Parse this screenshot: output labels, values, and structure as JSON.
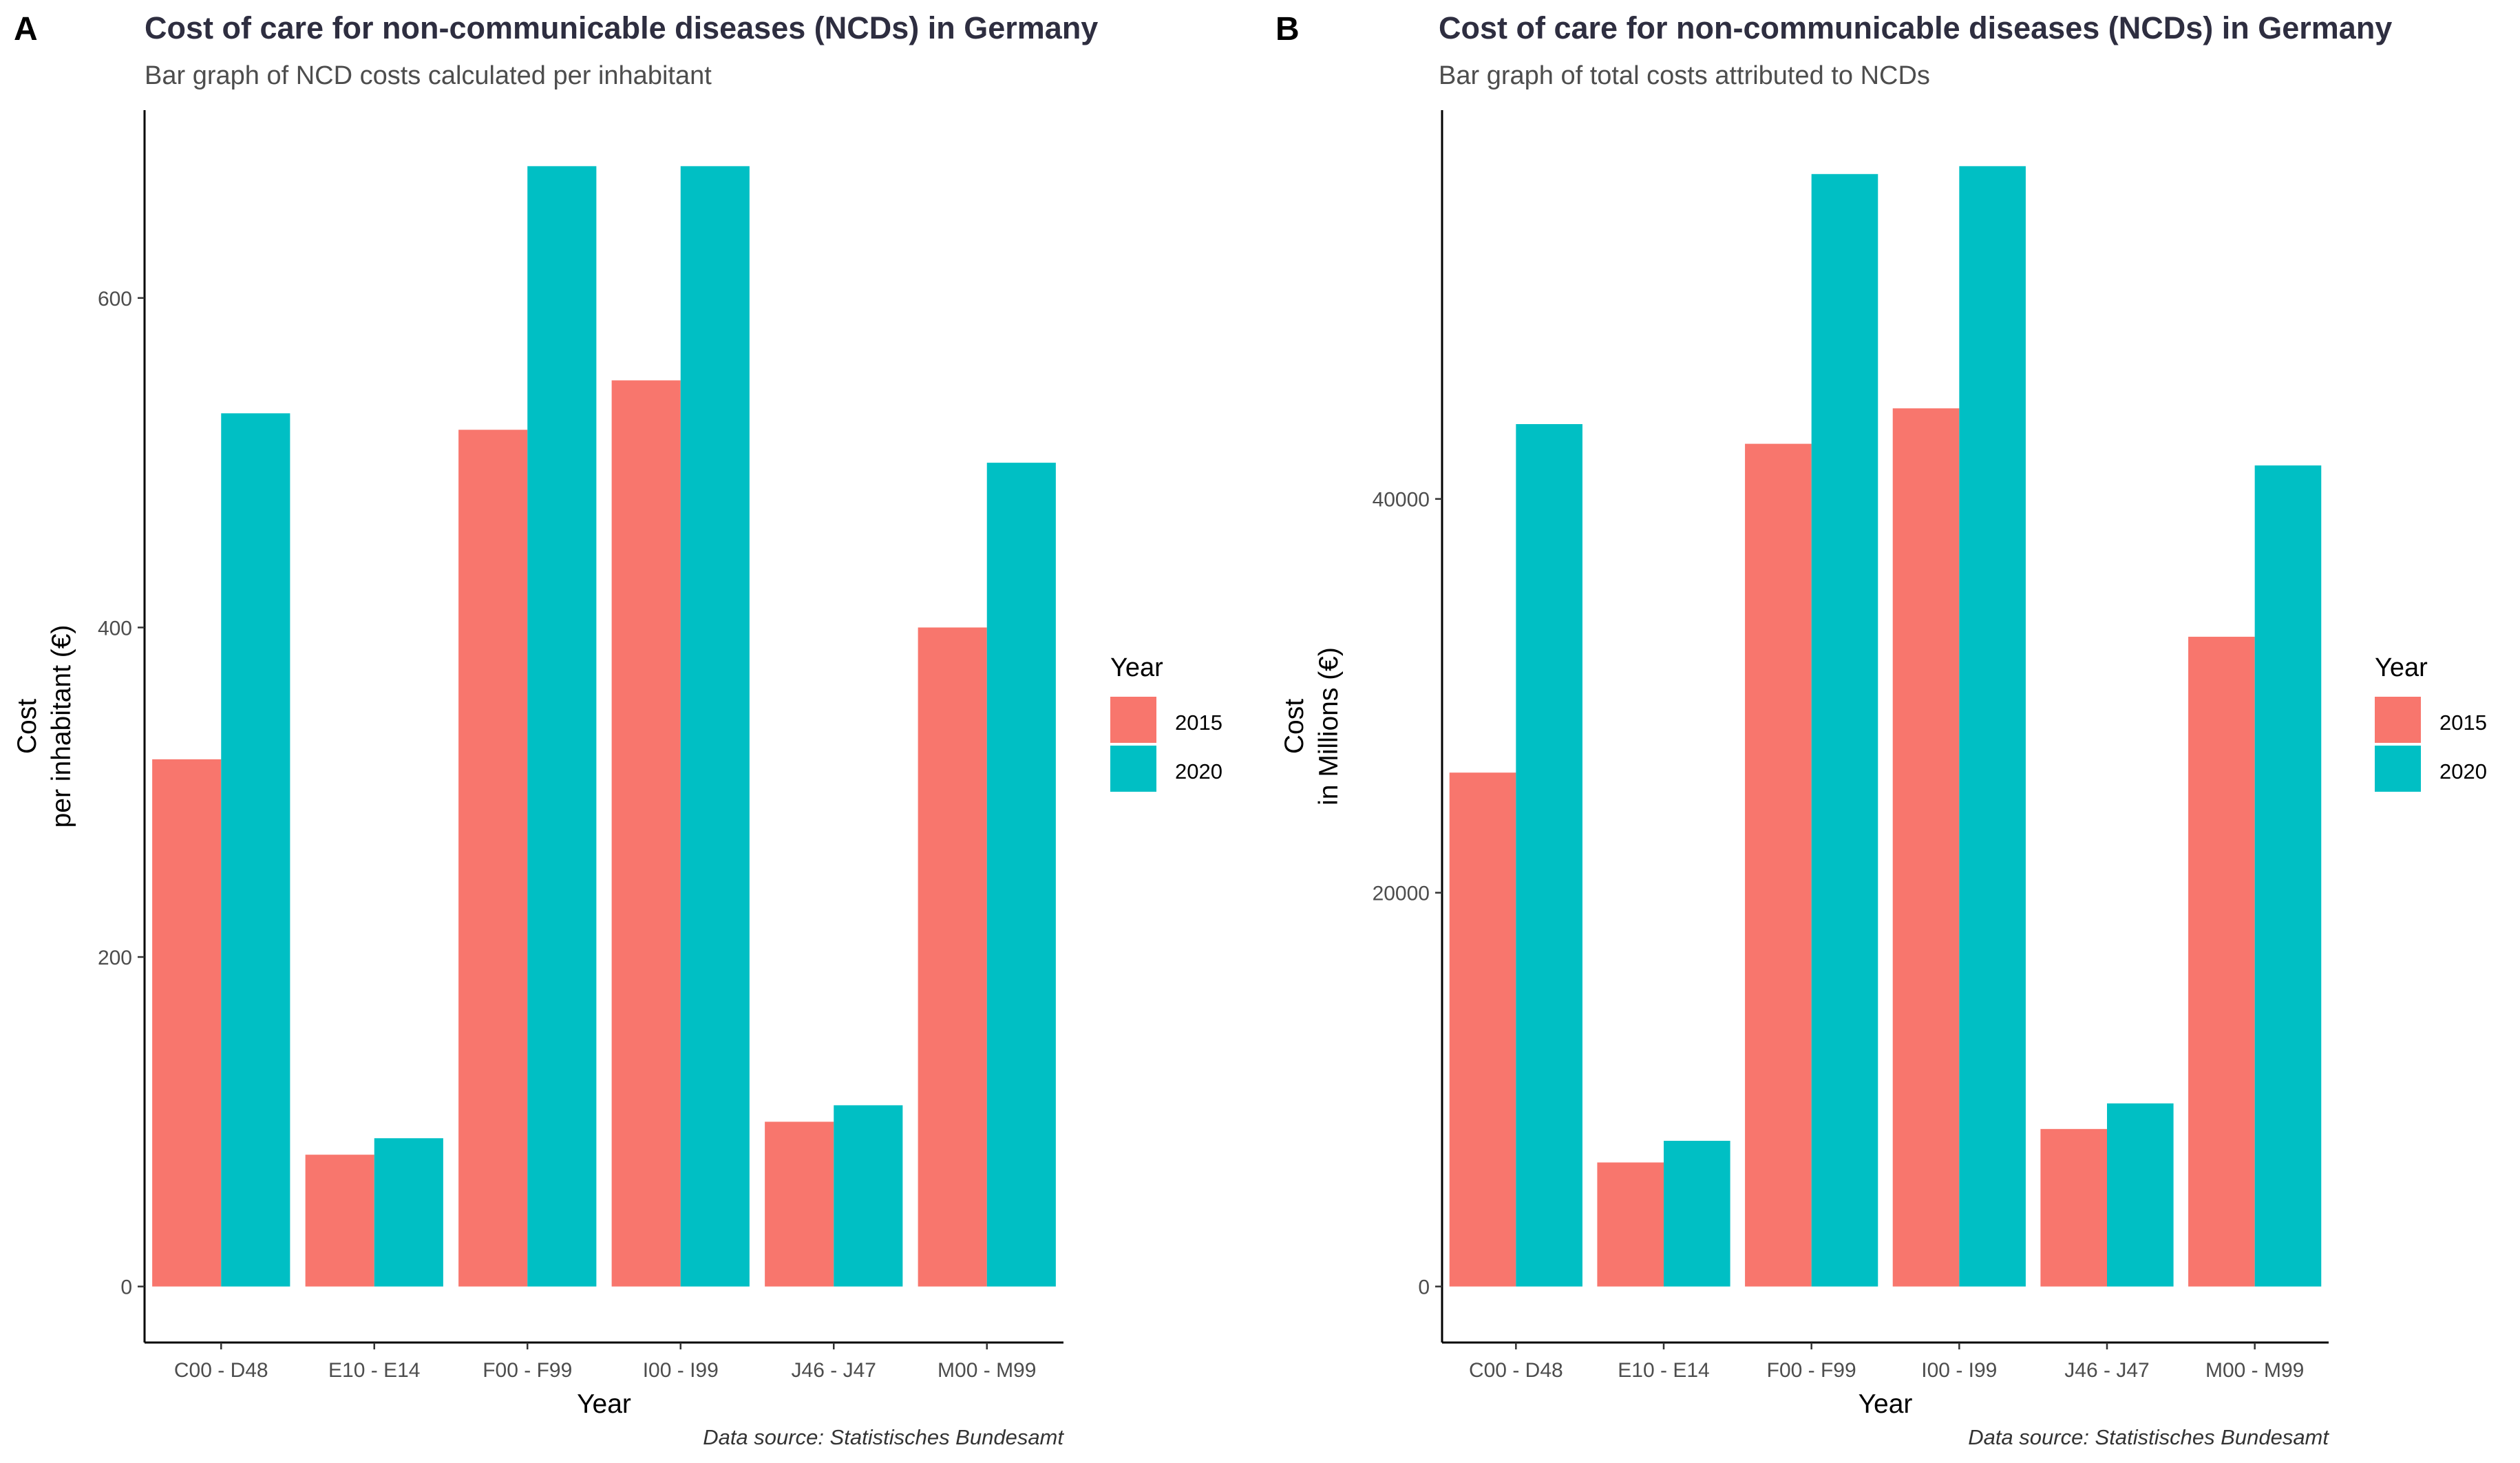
{
  "colors": {
    "series_2015": "#F8766D",
    "series_2020": "#00BFC4",
    "title": "#2E2E40",
    "axis": "#000000",
    "tick": "#4D4D4D"
  },
  "panels": [
    {
      "letter": "A",
      "title": "Cost of care for non-communicable diseases (NCDs) in Germany",
      "subtitle": "Bar graph of NCD costs calculated per inhabitant",
      "caption": "Data source: Statistisches Bundesamt",
      "legend": {
        "title": "Year",
        "items": [
          "2015",
          "2020"
        ]
      }
    },
    {
      "letter": "B",
      "title": "Cost of care for non-communicable diseases (NCDs) in Germany",
      "subtitle": "Bar graph of total costs attributed to NCDs",
      "caption": "Data source: Statistisches Bundesamt",
      "legend": {
        "title": "Year",
        "items": [
          "2015",
          "2020"
        ]
      }
    }
  ],
  "chart_data": [
    {
      "type": "bar",
      "title": "Cost of care for non-communicable diseases (NCDs) in Germany",
      "subtitle": "Bar graph of NCD costs calculated per inhabitant",
      "xlabel": "Year",
      "ylabel": [
        "Cost",
        "per inhabitant (€)"
      ],
      "categories": [
        "C00 - D48",
        "E10 - E14",
        "F00 - F99",
        "I00 - I99",
        "J46 - J47",
        "M00 - M99"
      ],
      "series": [
        {
          "name": "2015",
          "values": [
            320,
            80,
            520,
            550,
            100,
            400
          ]
        },
        {
          "name": "2020",
          "values": [
            530,
            90,
            680,
            680,
            110,
            500
          ]
        }
      ],
      "yticks": [
        0,
        200,
        400,
        600
      ],
      "ylim": [
        -34,
        714
      ],
      "grid": false,
      "legend_position": "right"
    },
    {
      "type": "bar",
      "title": "Cost of care for non-communicable diseases (NCDs) in Germany",
      "subtitle": "Bar graph of total costs attributed to NCDs",
      "xlabel": "Year",
      "ylabel": [
        "Cost",
        "in Millions (€)"
      ],
      "categories": [
        "C00 - D48",
        "E10 - E14",
        "F00 - F99",
        "I00 - I99",
        "J46 - J47",
        "M00 - M99"
      ],
      "series": [
        {
          "name": "2015",
          "values": [
            26100,
            6300,
            42800,
            44600,
            8000,
            33000
          ]
        },
        {
          "name": "2020",
          "values": [
            43800,
            7400,
            56500,
            56900,
            9300,
            41700
          ]
        }
      ],
      "yticks": [
        0,
        20000,
        40000
      ],
      "ylim": [
        -2845,
        59745
      ],
      "grid": false,
      "legend_position": "right"
    }
  ]
}
